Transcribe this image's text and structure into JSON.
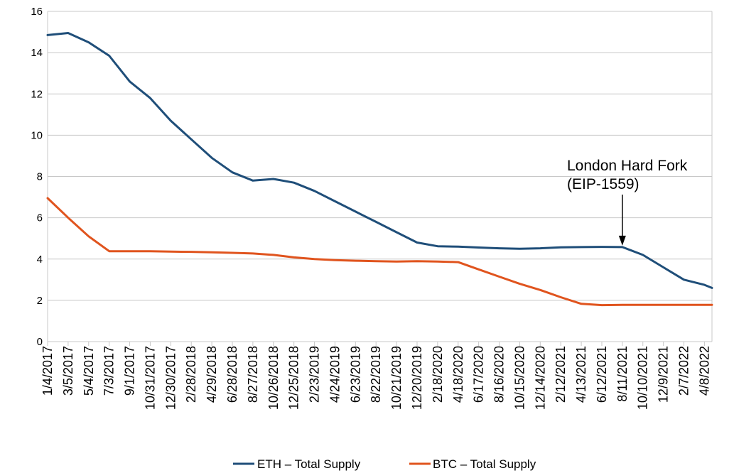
{
  "chart_data": {
    "type": "line",
    "title": "",
    "xlabel": "",
    "ylabel": "",
    "ylim": [
      0,
      16
    ],
    "y_ticks": [
      0,
      2,
      4,
      6,
      8,
      10,
      12,
      14,
      16
    ],
    "grid": "horizontal",
    "legend_position": "bottom",
    "x_tick_labels": [
      "1/4/2017",
      "3/5/2017",
      "5/4/2017",
      "7/3/2017",
      "9/1/2017",
      "10/31/2017",
      "12/30/2017",
      "2/28/2018",
      "4/29/2018",
      "6/28/2018",
      "8/27/2018",
      "10/26/2018",
      "12/25/2018",
      "2/23/2019",
      "4/24/2019",
      "6/23/2019",
      "8/22/2019",
      "10/21/2019",
      "12/20/2019",
      "2/18/2020",
      "4/18/2020",
      "6/17/2020",
      "8/16/2020",
      "10/15/2020",
      "12/14/2020",
      "2/12/2021",
      "4/13/2021",
      "6/12/2021",
      "8/11/2021",
      "10/10/2021",
      "12/9/2021",
      "2/7/2022",
      "4/8/2022"
    ],
    "series": [
      {
        "name": "ETH – Total Supply",
        "color": "#1f4e79",
        "points": [
          [
            "1/4/2017",
            14.85
          ],
          [
            "3/5/2017",
            14.95
          ],
          [
            "5/4/2017",
            14.5
          ],
          [
            "7/3/2017",
            13.85
          ],
          [
            "9/1/2017",
            12.6
          ],
          [
            "10/31/2017",
            11.8
          ],
          [
            "12/30/2017",
            10.7
          ],
          [
            "2/28/2018",
            9.8
          ],
          [
            "4/29/2018",
            8.9
          ],
          [
            "6/28/2018",
            8.2
          ],
          [
            "8/27/2018",
            7.8
          ],
          [
            "10/26/2018",
            7.88
          ],
          [
            "12/25/2018",
            7.7
          ],
          [
            "2/23/2019",
            7.3
          ],
          [
            "4/24/2019",
            6.8
          ],
          [
            "6/23/2019",
            6.3
          ],
          [
            "8/22/2019",
            5.8
          ],
          [
            "10/21/2019",
            5.3
          ],
          [
            "12/20/2019",
            4.8
          ],
          [
            "2/18/2020",
            4.62
          ],
          [
            "4/18/2020",
            4.6
          ],
          [
            "6/17/2020",
            4.56
          ],
          [
            "8/16/2020",
            4.52
          ],
          [
            "10/15/2020",
            4.5
          ],
          [
            "12/14/2020",
            4.52
          ],
          [
            "2/12/2021",
            4.57
          ],
          [
            "4/13/2021",
            4.58
          ],
          [
            "6/12/2021",
            4.59
          ],
          [
            "8/11/2021",
            4.58
          ],
          [
            "10/10/2021",
            4.2
          ],
          [
            "12/9/2021",
            3.6
          ],
          [
            "2/7/2022",
            3.0
          ],
          [
            "4/8/2022",
            2.75
          ],
          [
            "4/30/2022",
            2.6
          ]
        ]
      },
      {
        "name": "BTC – Total Supply",
        "color": "#e0541e",
        "points": [
          [
            "1/4/2017",
            6.95
          ],
          [
            "3/5/2017",
            6.0
          ],
          [
            "5/4/2017",
            5.1
          ],
          [
            "7/3/2017",
            4.38
          ],
          [
            "9/1/2017",
            4.38
          ],
          [
            "10/31/2017",
            4.38
          ],
          [
            "12/30/2017",
            4.36
          ],
          [
            "2/28/2018",
            4.35
          ],
          [
            "4/29/2018",
            4.33
          ],
          [
            "6/28/2018",
            4.3
          ],
          [
            "8/27/2018",
            4.27
          ],
          [
            "10/26/2018",
            4.2
          ],
          [
            "12/25/2018",
            4.08
          ],
          [
            "2/23/2019",
            4.0
          ],
          [
            "4/24/2019",
            3.95
          ],
          [
            "6/23/2019",
            3.92
          ],
          [
            "8/22/2019",
            3.9
          ],
          [
            "10/21/2019",
            3.88
          ],
          [
            "12/20/2019",
            3.9
          ],
          [
            "2/18/2020",
            3.88
          ],
          [
            "4/18/2020",
            3.85
          ],
          [
            "6/17/2020",
            3.5
          ],
          [
            "8/16/2020",
            3.15
          ],
          [
            "10/15/2020",
            2.8
          ],
          [
            "12/14/2020",
            2.5
          ],
          [
            "2/12/2021",
            2.15
          ],
          [
            "4/13/2021",
            1.83
          ],
          [
            "6/12/2021",
            1.77
          ],
          [
            "8/11/2021",
            1.78
          ],
          [
            "10/10/2021",
            1.78
          ],
          [
            "12/9/2021",
            1.78
          ],
          [
            "2/7/2022",
            1.78
          ],
          [
            "4/8/2022",
            1.78
          ],
          [
            "4/30/2022",
            1.78
          ]
        ]
      }
    ],
    "annotations": [
      {
        "text_line1": "London Hard Fork",
        "text_line2": "(EIP-1559)",
        "x": "8/11/2021",
        "y": 4.58
      }
    ]
  }
}
